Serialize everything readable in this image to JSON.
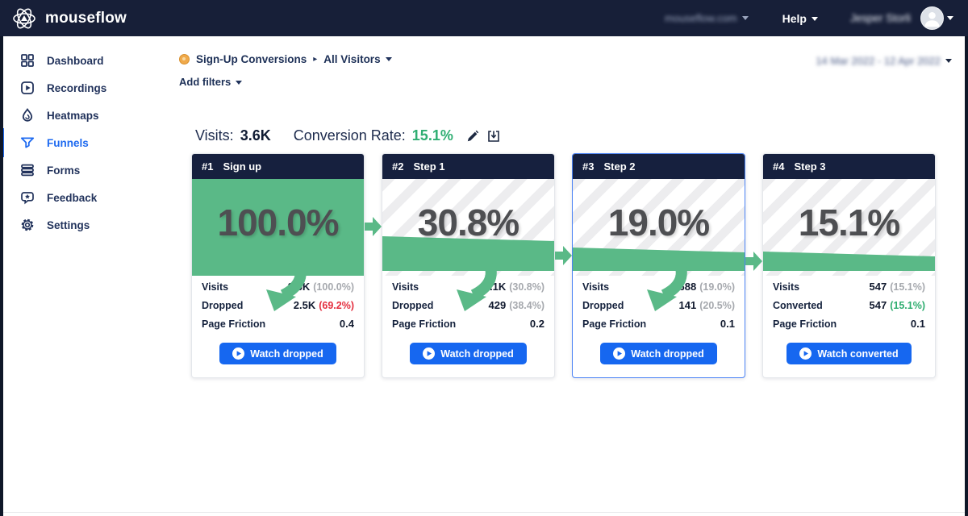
{
  "colors": {
    "navy": "#171f38",
    "accent_blue": "#1e6af0",
    "button_blue": "#1667f0",
    "funnel_green": "#5ab987",
    "success_green": "#2ead6f",
    "danger_red": "#e42e3e",
    "muted_gray": "#a6a9ae",
    "selected_border": "#4b83f5"
  },
  "navbar": {
    "brand": "mouseflow",
    "logo_icon": "atom-logo-icon",
    "domain": "mouseflow.com",
    "help_label": "Help",
    "user_name": "Jesper Storli"
  },
  "sidebar": {
    "items": [
      {
        "label": "Dashboard",
        "icon": "dashboard-icon",
        "active": false
      },
      {
        "label": "Recordings",
        "icon": "recordings-icon",
        "active": false
      },
      {
        "label": "Heatmaps",
        "icon": "heatmaps-icon",
        "active": false
      },
      {
        "label": "Funnels",
        "icon": "funnels-icon",
        "active": true
      },
      {
        "label": "Forms",
        "icon": "forms-icon",
        "active": false
      },
      {
        "label": "Feedback",
        "icon": "feedback-icon",
        "active": false
      },
      {
        "label": "Settings",
        "icon": "settings-icon",
        "active": false
      }
    ]
  },
  "toolbar": {
    "breadcrumb": {
      "icon": "funnel-badge-icon",
      "funnel_name": "Sign-Up Conversions",
      "segment": "All Visitors"
    },
    "add_filters": "Add filters",
    "date_range": "14 Mar 2022 - 12 Apr 2022"
  },
  "summary": {
    "visits_label": "Visits:",
    "visits_value": "3.6K",
    "conversion_label": "Conversion Rate:",
    "conversion_value": "15.1%",
    "edit_icon": "edit-pencil-icon",
    "save_icon": "save-icon"
  },
  "funnel": {
    "steps": [
      {
        "num": "#1",
        "name": "Sign up",
        "pct_label": "100.0%",
        "pct": 100.0,
        "has_drop_arrow": true,
        "exit_arrow": true,
        "selected": false,
        "rows": [
          {
            "label": "Visits",
            "value": "3.6K",
            "pct": "(100.0%)",
            "pct_class": "muted"
          },
          {
            "label": "Dropped",
            "value": "2.5K",
            "pct": "(69.2%)",
            "pct_class": "red"
          },
          {
            "label": "Page Friction",
            "value": "0.4",
            "pct": "",
            "pct_class": ""
          }
        ],
        "button": "Watch dropped"
      },
      {
        "num": "#2",
        "name": "Step 1",
        "pct_label": "30.8%",
        "pct": 30.8,
        "has_drop_arrow": true,
        "exit_arrow": true,
        "selected": false,
        "rows": [
          {
            "label": "Visits",
            "value": "1.1K",
            "pct": "(30.8%)",
            "pct_class": "muted"
          },
          {
            "label": "Dropped",
            "value": "429",
            "pct": "(38.4%)",
            "pct_class": "muted"
          },
          {
            "label": "Page Friction",
            "value": "0.2",
            "pct": "",
            "pct_class": ""
          }
        ],
        "button": "Watch dropped"
      },
      {
        "num": "#3",
        "name": "Step 2",
        "pct_label": "19.0%",
        "pct": 19.0,
        "has_drop_arrow": true,
        "exit_arrow": true,
        "selected": true,
        "rows": [
          {
            "label": "Visits",
            "value": "688",
            "pct": "(19.0%)",
            "pct_class": "muted"
          },
          {
            "label": "Dropped",
            "value": "141",
            "pct": "(20.5%)",
            "pct_class": "muted"
          },
          {
            "label": "Page Friction",
            "value": "0.1",
            "pct": "",
            "pct_class": ""
          }
        ],
        "button": "Watch dropped"
      },
      {
        "num": "#4",
        "name": "Step 3",
        "pct_label": "15.1%",
        "pct": 15.1,
        "has_drop_arrow": false,
        "exit_arrow": false,
        "selected": false,
        "rows": [
          {
            "label": "Visits",
            "value": "547",
            "pct": "(15.1%)",
            "pct_class": "muted"
          },
          {
            "label": "Converted",
            "value": "547",
            "pct": "(15.1%)",
            "pct_class": "green"
          },
          {
            "label": "Page Friction",
            "value": "0.1",
            "pct": "",
            "pct_class": ""
          }
        ],
        "button": "Watch converted"
      }
    ]
  }
}
